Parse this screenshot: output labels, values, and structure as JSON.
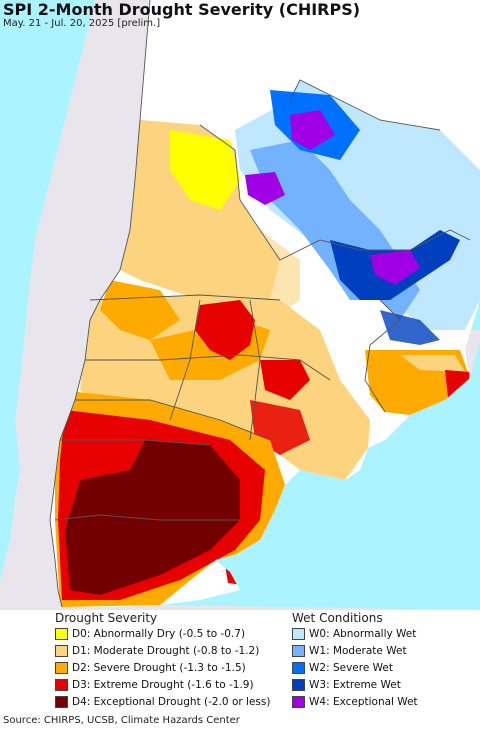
{
  "title": "SPI 2-Month Drought Severity (CHIRPS)",
  "subtitle": "May. 21 - Jul. 20, 2025 [prelim.]",
  "legend": {
    "drought": {
      "title": "Drought Severity",
      "items": [
        {
          "label": "D0: Abnormally Dry (-0.5 to -0.7)",
          "color": "#ffff00"
        },
        {
          "label": "D1: Moderate Drought (-0.8 to -1.2)",
          "color": "#fcd37f"
        },
        {
          "label": "D2: Severe Drought (-1.3 to -1.5)",
          "color": "#ffaa00"
        },
        {
          "label": "D3: Extreme Drought (-1.6 to -1.9)",
          "color": "#e60000"
        },
        {
          "label": "D4: Exceptional Drought (-2.0 or less)",
          "color": "#730000"
        }
      ]
    },
    "wet": {
      "title": "Wet Conditions",
      "items": [
        {
          "label": "W0: Abnormally Wet",
          "color": "#bfe8ff"
        },
        {
          "label": "W1: Moderate Wet",
          "color": "#73b2ff"
        },
        {
          "label": "W2: Severe Wet",
          "color": "#0070ff"
        },
        {
          "label": "W3: Extreme Wet",
          "color": "#0040c0"
        },
        {
          "label": "W4: Exceptional Wet",
          "color": "#a000e6"
        }
      ]
    }
  },
  "colors": {
    "ocean": "#aaf3ff",
    "outside_land": "#e8e6ec",
    "neutral": "#ffffff",
    "borders": "#555555"
  },
  "footer": "Source: CHIRPS, UCSB, Climate Hazards Center"
}
